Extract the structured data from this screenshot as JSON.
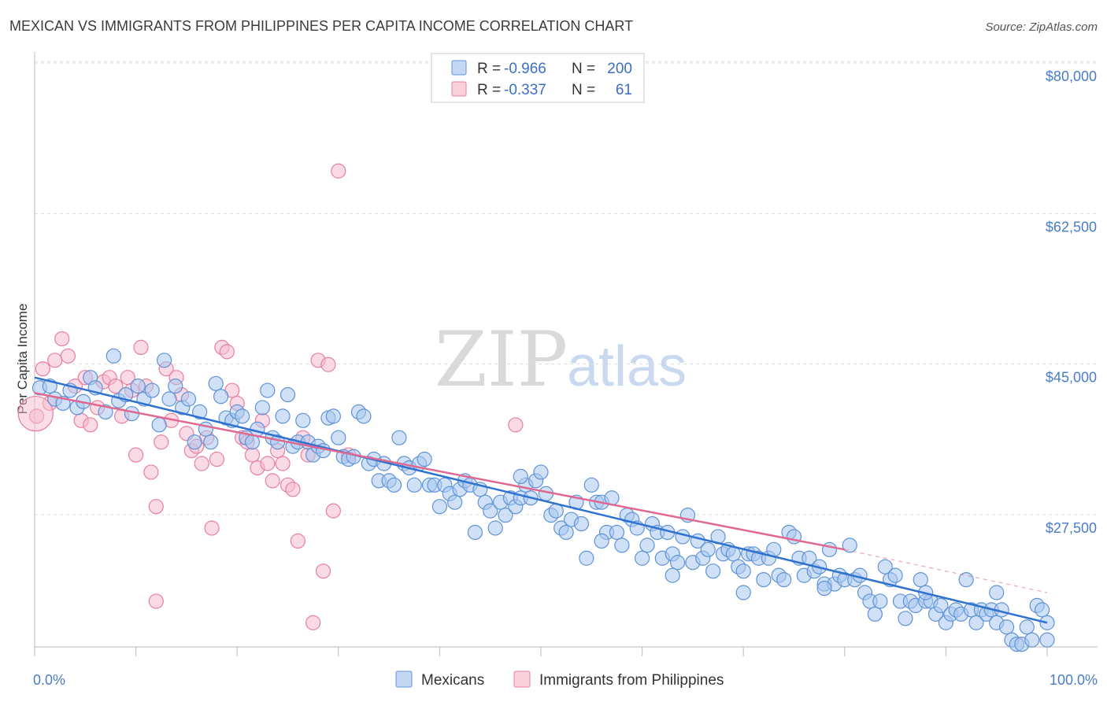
{
  "chart_data": {
    "type": "scatter",
    "title": "MEXICAN VS IMMIGRANTS FROM PHILIPPINES PER CAPITA INCOME CORRELATION CHART",
    "source": "Source: ZipAtlas.com",
    "ylabel": "Per Capita Income",
    "xlim": [
      0,
      100
    ],
    "ylim": [
      12000,
      83000
    ],
    "yticks": [
      27500,
      45000,
      62500,
      80000
    ],
    "ytick_labels": [
      "$27,500",
      "$45,000",
      "$62,500",
      "$80,000"
    ],
    "xtick_labels": [
      "0.0%",
      "100.0%"
    ],
    "watermark": {
      "zip": "ZIP",
      "atlas": "atlas"
    },
    "colors": {
      "mexicans_fill": "#a9c8f0",
      "mexicans_stroke": "#5f93d6",
      "mexicans_line": "#2f72cf",
      "philippines_fill": "#f6bccd",
      "philippines_stroke": "#e87fa0",
      "philippines_line": "#e06890",
      "axis": "#bbbbbb",
      "grid": "#dddddd"
    },
    "legend": {
      "entries": [
        {
          "r_label": "R =",
          "r_value": "-0.966",
          "n_label": "N =",
          "n_value": "200"
        },
        {
          "r_label": "R =",
          "r_value": "-0.337",
          "n_label": "N =",
          "n_value": "61"
        }
      ]
    },
    "series": [
      {
        "name": "Mexicans",
        "trend": {
          "x": [
            0,
            100
          ],
          "y": [
            45000,
            16500
          ]
        },
        "points": [
          [
            0.5,
            43.8
          ],
          [
            1.5,
            44.0
          ],
          [
            2.0,
            42.5
          ],
          [
            2.8,
            42.0
          ],
          [
            3.5,
            43.5
          ],
          [
            4.2,
            41.5
          ],
          [
            4.8,
            42.2
          ],
          [
            5.5,
            45.0
          ],
          [
            6.0,
            43.8
          ],
          [
            7.0,
            41.0
          ],
          [
            7.8,
            47.5
          ],
          [
            8.3,
            42.3
          ],
          [
            9.0,
            43.0
          ],
          [
            9.6,
            40.8
          ],
          [
            10.2,
            44.0
          ],
          [
            10.8,
            42.5
          ],
          [
            11.6,
            43.5
          ],
          [
            12.3,
            39.5
          ],
          [
            12.8,
            47.0
          ],
          [
            13.3,
            42.5
          ],
          [
            13.9,
            44.0
          ],
          [
            14.6,
            41.5
          ],
          [
            15.2,
            42.5
          ],
          [
            15.8,
            37.5
          ],
          [
            16.3,
            41.0
          ],
          [
            16.9,
            39.0
          ],
          [
            17.4,
            37.5
          ],
          [
            17.9,
            44.3
          ],
          [
            18.4,
            42.8
          ],
          [
            18.9,
            40.3
          ],
          [
            19.5,
            40.0
          ],
          [
            20.0,
            41.0
          ],
          [
            20.5,
            40.5
          ],
          [
            20.9,
            38.0
          ],
          [
            21.5,
            37.5
          ],
          [
            22.0,
            39.0
          ],
          [
            22.5,
            41.5
          ],
          [
            23.0,
            43.5
          ],
          [
            23.5,
            38.0
          ],
          [
            24.0,
            37.5
          ],
          [
            24.5,
            40.5
          ],
          [
            25.0,
            43.0
          ],
          [
            25.5,
            37.0
          ],
          [
            26.0,
            37.5
          ],
          [
            26.5,
            40.0
          ],
          [
            27.0,
            37.5
          ],
          [
            27.5,
            36.0
          ],
          [
            28.0,
            37.0
          ],
          [
            28.5,
            36.5
          ],
          [
            29.0,
            40.3
          ],
          [
            29.5,
            40.5
          ],
          [
            30.0,
            38.0
          ],
          [
            30.5,
            35.8
          ],
          [
            31.0,
            35.5
          ],
          [
            31.5,
            35.8
          ],
          [
            32.0,
            41.0
          ],
          [
            32.5,
            40.5
          ],
          [
            33.0,
            35.0
          ],
          [
            33.5,
            35.5
          ],
          [
            34.0,
            33.0
          ],
          [
            34.5,
            35.0
          ],
          [
            35.0,
            33.0
          ],
          [
            35.5,
            32.5
          ],
          [
            36.0,
            38.0
          ],
          [
            36.5,
            35.0
          ],
          [
            37.0,
            34.5
          ],
          [
            37.5,
            32.5
          ],
          [
            38.0,
            35.0
          ],
          [
            38.5,
            35.5
          ],
          [
            39.0,
            32.5
          ],
          [
            39.5,
            32.5
          ],
          [
            40.0,
            30.0
          ],
          [
            40.5,
            32.5
          ],
          [
            41.0,
            31.5
          ],
          [
            41.5,
            30.5
          ],
          [
            42.0,
            32.0
          ],
          [
            42.5,
            33.0
          ],
          [
            43.0,
            32.5
          ],
          [
            43.5,
            27.0
          ],
          [
            44.0,
            32.0
          ],
          [
            44.5,
            30.5
          ],
          [
            45.0,
            29.5
          ],
          [
            45.5,
            27.5
          ],
          [
            46.0,
            30.5
          ],
          [
            46.5,
            29.0
          ],
          [
            47.0,
            31.0
          ],
          [
            47.5,
            30.0
          ],
          [
            48.0,
            31.0
          ],
          [
            48.5,
            32.5
          ],
          [
            49.0,
            31.0
          ],
          [
            49.5,
            33.0
          ],
          [
            50.0,
            34.0
          ],
          [
            50.5,
            31.5
          ],
          [
            51.0,
            29.0
          ],
          [
            51.5,
            29.5
          ],
          [
            52.0,
            27.5
          ],
          [
            52.5,
            27.0
          ],
          [
            53.0,
            28.5
          ],
          [
            53.5,
            30.5
          ],
          [
            54.0,
            28.0
          ],
          [
            54.5,
            24.0
          ],
          [
            55.0,
            32.5
          ],
          [
            55.5,
            30.5
          ],
          [
            56.0,
            30.5
          ],
          [
            56.5,
            27.0
          ],
          [
            57.0,
            31.0
          ],
          [
            57.5,
            27.0
          ],
          [
            58.0,
            25.5
          ],
          [
            58.5,
            29.0
          ],
          [
            59.0,
            28.5
          ],
          [
            59.5,
            27.5
          ],
          [
            60.0,
            24.0
          ],
          [
            60.5,
            25.5
          ],
          [
            61.0,
            28.0
          ],
          [
            61.5,
            27.0
          ],
          [
            62.0,
            24.0
          ],
          [
            62.5,
            27.0
          ],
          [
            63.0,
            24.5
          ],
          [
            63.5,
            23.5
          ],
          [
            64.0,
            26.5
          ],
          [
            64.5,
            29.0
          ],
          [
            65.0,
            23.5
          ],
          [
            65.5,
            26.0
          ],
          [
            66.0,
            24.0
          ],
          [
            66.5,
            25.0
          ],
          [
            67.0,
            22.5
          ],
          [
            67.5,
            26.5
          ],
          [
            68.0,
            24.5
          ],
          [
            68.5,
            25.0
          ],
          [
            69.0,
            24.5
          ],
          [
            69.5,
            23.0
          ],
          [
            70.0,
            22.5
          ],
          [
            70.5,
            24.5
          ],
          [
            71.0,
            24.5
          ],
          [
            71.5,
            24.0
          ],
          [
            72.0,
            21.5
          ],
          [
            72.5,
            24.0
          ],
          [
            73.0,
            25.0
          ],
          [
            73.5,
            22.0
          ],
          [
            74.0,
            21.5
          ],
          [
            74.5,
            27.0
          ],
          [
            75.0,
            26.5
          ],
          [
            75.5,
            24.0
          ],
          [
            76.0,
            22.0
          ],
          [
            76.5,
            24.0
          ],
          [
            77.0,
            22.5
          ],
          [
            77.5,
            23.0
          ],
          [
            78.0,
            21.0
          ],
          [
            78.5,
            25.0
          ],
          [
            79.0,
            21.0
          ],
          [
            79.5,
            22.0
          ],
          [
            80.0,
            21.5
          ],
          [
            80.5,
            25.5
          ],
          [
            81.0,
            21.5
          ],
          [
            81.5,
            22.0
          ],
          [
            82.0,
            20.0
          ],
          [
            82.5,
            19.0
          ],
          [
            83.0,
            17.5
          ],
          [
            83.5,
            19.0
          ],
          [
            84.0,
            23.0
          ],
          [
            84.5,
            21.5
          ],
          [
            85.0,
            22.0
          ],
          [
            85.5,
            19.0
          ],
          [
            86.0,
            17.0
          ],
          [
            86.5,
            19.0
          ],
          [
            87.0,
            18.5
          ],
          [
            87.5,
            21.5
          ],
          [
            88.0,
            19.0
          ],
          [
            88.5,
            19.0
          ],
          [
            89.0,
            17.5
          ],
          [
            89.5,
            18.5
          ],
          [
            90.0,
            16.5
          ],
          [
            90.5,
            17.5
          ],
          [
            91.0,
            18.0
          ],
          [
            91.5,
            17.5
          ],
          [
            92.0,
            21.5
          ],
          [
            92.5,
            18.0
          ],
          [
            93.0,
            16.5
          ],
          [
            93.5,
            18.0
          ],
          [
            94.0,
            17.5
          ],
          [
            94.5,
            18.0
          ],
          [
            95.0,
            16.5
          ],
          [
            95.5,
            18.0
          ],
          [
            96.0,
            16.0
          ],
          [
            96.5,
            14.5
          ],
          [
            97.0,
            14.0
          ],
          [
            97.5,
            14.0
          ],
          [
            98.0,
            16.0
          ],
          [
            98.5,
            14.5
          ],
          [
            99.0,
            18.5
          ],
          [
            99.5,
            18.0
          ],
          [
            100.0,
            14.5
          ],
          [
            100.0,
            16.5
          ],
          [
            95.0,
            20.0
          ],
          [
            88.0,
            20.0
          ],
          [
            78.0,
            20.5
          ],
          [
            70.0,
            20.0
          ],
          [
            63.0,
            22.0
          ],
          [
            56.0,
            26.0
          ],
          [
            48.0,
            33.5
          ]
        ]
      },
      {
        "name": "Immigrants from Philippines",
        "trend": {
          "x": [
            0,
            80
          ],
          "y": [
            43200,
            25000
          ]
        },
        "trend_dashed": {
          "x": [
            80,
            100
          ],
          "y": [
            25000,
            20000
          ]
        },
        "points": [
          [
            0.2,
            40.5
          ],
          [
            0.8,
            46.0
          ],
          [
            1.5,
            42.0
          ],
          [
            2.0,
            47.0
          ],
          [
            2.7,
            49.5
          ],
          [
            3.3,
            47.5
          ],
          [
            4.0,
            44.0
          ],
          [
            4.6,
            40.0
          ],
          [
            5.0,
            45.0
          ],
          [
            5.5,
            39.5
          ],
          [
            6.2,
            41.5
          ],
          [
            6.8,
            44.5
          ],
          [
            7.4,
            45.0
          ],
          [
            8.0,
            44.0
          ],
          [
            8.6,
            40.5
          ],
          [
            9.2,
            45.0
          ],
          [
            9.6,
            43.5
          ],
          [
            10.0,
            36.0
          ],
          [
            10.5,
            48.5
          ],
          [
            11.0,
            44.0
          ],
          [
            11.5,
            34.0
          ],
          [
            12.0,
            30.0
          ],
          [
            12.5,
            37.5
          ],
          [
            13.0,
            46.0
          ],
          [
            13.5,
            40.0
          ],
          [
            14.0,
            45.0
          ],
          [
            14.5,
            43.0
          ],
          [
            15.0,
            38.5
          ],
          [
            15.5,
            36.5
          ],
          [
            16.0,
            37.0
          ],
          [
            16.5,
            35.0
          ],
          [
            17.0,
            38.0
          ],
          [
            17.5,
            27.5
          ],
          [
            18.0,
            35.5
          ],
          [
            18.5,
            48.5
          ],
          [
            19.0,
            48.0
          ],
          [
            19.5,
            43.5
          ],
          [
            20.0,
            42.0
          ],
          [
            20.5,
            38.0
          ],
          [
            21.0,
            37.5
          ],
          [
            21.5,
            36.0
          ],
          [
            22.0,
            34.5
          ],
          [
            22.5,
            40.0
          ],
          [
            23.0,
            35.0
          ],
          [
            23.5,
            33.0
          ],
          [
            24.0,
            36.5
          ],
          [
            24.5,
            35.0
          ],
          [
            25.0,
            32.5
          ],
          [
            25.5,
            32.0
          ],
          [
            26.0,
            26.0
          ],
          [
            26.5,
            38.0
          ],
          [
            27.0,
            36.0
          ],
          [
            27.5,
            16.5
          ],
          [
            28.0,
            47.0
          ],
          [
            28.5,
            22.5
          ],
          [
            29.0,
            46.5
          ],
          [
            29.5,
            29.5
          ],
          [
            30.0,
            69.0
          ],
          [
            31.0,
            36.0
          ],
          [
            47.5,
            39.5
          ],
          [
            12.0,
            19.0
          ]
        ]
      }
    ],
    "bottom_legend": [
      "Mexicans",
      "Immigrants from Philippines"
    ]
  }
}
